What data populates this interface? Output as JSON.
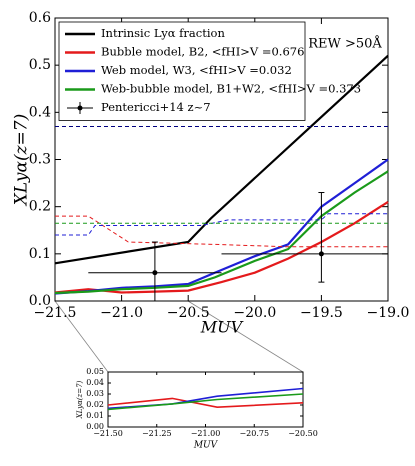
{
  "chart_data": [
    {
      "type": "line",
      "xlabel": "MUV",
      "ylabel": "XLyα(z=7)",
      "annotation": "REW >50Å",
      "xlim": [
        -21.5,
        -19.0
      ],
      "ylim": [
        0,
        0.6
      ],
      "xticks": [
        {
          "value": -21.5,
          "label": "−21.5"
        },
        {
          "value": -21.0,
          "label": "−21.0"
        },
        {
          "value": -20.5,
          "label": "−20.5"
        },
        {
          "value": -20.0,
          "label": "−20.0"
        },
        {
          "value": -19.5,
          "label": "−19.5"
        },
        {
          "value": -19.0,
          "label": "−19.0"
        }
      ],
      "yticks": [
        {
          "value": 0,
          "label": "0.0"
        },
        0.1,
        0.2,
        0.3,
        0.4,
        0.5,
        0.6
      ],
      "series": [
        {
          "name": "Intrinsic Lyα fraction",
          "color": "#000000",
          "x": [
            -21.5,
            -20.5,
            -20.33,
            -19.0
          ],
          "values": [
            0.08,
            0.125,
            0.175,
            0.52
          ]
        },
        {
          "name": "Bubble model, B2, <fHI>V =0.676",
          "color": "#e41a1c",
          "x": [
            -21.5,
            -21.25,
            -21.0,
            -20.75,
            -20.5,
            -20.25,
            -20.0,
            -19.75,
            -19.5,
            -19.25,
            -19.0
          ],
          "values": [
            0.018,
            0.025,
            0.018,
            0.02,
            0.022,
            0.04,
            0.06,
            0.09,
            0.125,
            0.165,
            0.21
          ]
        },
        {
          "name": "Web model, W3, <fHI>V =0.032",
          "color": "#1f1fd6",
          "x": [
            -21.5,
            -21.25,
            -21.0,
            -20.75,
            -20.5,
            -20.3,
            -20.0,
            -19.75,
            -19.5,
            -19.25,
            -19.0
          ],
          "values": [
            0.016,
            0.021,
            0.028,
            0.031,
            0.036,
            0.06,
            0.095,
            0.12,
            0.2,
            0.25,
            0.3
          ]
        },
        {
          "name": "Web-bubble model, B1+W2, <fHI>V =0.373",
          "color": "#1a9a1a",
          "x": [
            -21.5,
            -21.25,
            -21.0,
            -20.75,
            -20.5,
            -20.3,
            -20.0,
            -19.75,
            -19.5,
            -19.25,
            -19.0
          ],
          "values": [
            0.017,
            0.02,
            0.025,
            0.028,
            0.032,
            0.05,
            0.085,
            0.11,
            0.18,
            0.23,
            0.275
          ]
        },
        {
          "color": "#000080",
          "style": "dashed",
          "x": [
            -21.5,
            -19.0
          ],
          "values": [
            0.37,
            0.37
          ]
        },
        {
          "color": "#e41a1c",
          "style": "dashed",
          "x": [
            -21.5,
            -21.25,
            -20.95,
            -20.3,
            -19.75,
            -19.0
          ],
          "values": [
            0.18,
            0.18,
            0.125,
            0.12,
            0.115,
            0.115
          ]
        },
        {
          "color": "#1f1fd6",
          "style": "dashed",
          "x": [
            -21.5,
            -21.25,
            -21.2,
            -20.4,
            -20.2,
            -19.5,
            -19.45,
            -19.0
          ],
          "values": [
            0.14,
            0.14,
            0.16,
            0.16,
            0.172,
            0.172,
            0.185,
            0.185
          ]
        },
        {
          "color": "#1a9a1a",
          "style": "dashed",
          "x": [
            -21.5,
            -19.0
          ],
          "values": [
            0.165,
            0.165
          ]
        }
      ],
      "points": {
        "name": "Pentericci+14 z~7",
        "color": "#000000",
        "x": [
          -20.75,
          -19.5
        ],
        "values": [
          0.06,
          0.1
        ],
        "xerr_low": [
          0.5,
          0.75
        ],
        "xerr_high": [
          0.5,
          0.5
        ],
        "yerr_low": [
          0.06,
          0.06
        ],
        "yerr_high": [
          0.065,
          0.13
        ]
      }
    },
    {
      "type": "line",
      "xlabel": "MUV",
      "ylabel": "XLyα(z=7)",
      "xlim": [
        -21.5,
        -20.5
      ],
      "ylim": [
        0,
        0.05
      ],
      "xticks": [
        {
          "value": -21.5,
          "label": "−21.50"
        },
        {
          "value": -21.25,
          "label": "−21.25"
        },
        {
          "value": -21.0,
          "label": "−21.00"
        },
        {
          "value": -20.75,
          "label": "−20.75"
        },
        {
          "value": -20.5,
          "label": "−20.50"
        }
      ],
      "yticks": [
        {
          "value": 0,
          "label": "0.00"
        },
        {
          "value": 0.01,
          "label": "0.01"
        },
        {
          "value": 0.02,
          "label": "0.02"
        },
        {
          "value": 0.03,
          "label": "0.03"
        },
        {
          "value": 0.04,
          "label": "0.04"
        },
        {
          "value": 0.05,
          "label": "0.05"
        }
      ],
      "series": [
        {
          "color": "#e41a1c",
          "x": [
            -21.5,
            -21.17,
            -20.94,
            -20.5
          ],
          "values": [
            0.02,
            0.026,
            0.018,
            0.022
          ]
        },
        {
          "color": "#1f1fd6",
          "x": [
            -21.5,
            -21.17,
            -20.94,
            -20.5
          ],
          "values": [
            0.017,
            0.021,
            0.028,
            0.035
          ]
        },
        {
          "color": "#1a9a1a",
          "x": [
            -21.5,
            -21.17,
            -20.94,
            -20.5
          ],
          "values": [
            0.016,
            0.021,
            0.025,
            0.03
          ]
        }
      ]
    }
  ]
}
